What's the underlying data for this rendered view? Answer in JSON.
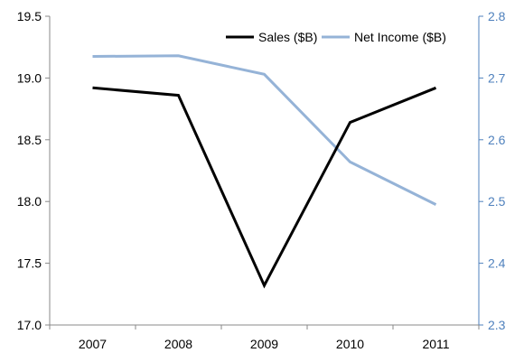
{
  "chart_data": {
    "type": "line",
    "categories": [
      "2007",
      "2008",
      "2009",
      "2010",
      "2011"
    ],
    "series": [
      {
        "name": "Sales ($B)",
        "axis": "left",
        "color": "#000000",
        "values": [
          18.92,
          18.86,
          17.32,
          18.64,
          18.92
        ]
      },
      {
        "name": "Net Income ($B)",
        "axis": "right",
        "color": "#95B3D7",
        "values": [
          2.735,
          2.736,
          2.706,
          2.564,
          2.495
        ]
      }
    ],
    "y_left": {
      "range": [
        17.0,
        19.5
      ],
      "ticks": [
        "17.0",
        "17.5",
        "18.0",
        "18.5",
        "19.0",
        "19.5"
      ]
    },
    "y_right": {
      "range": [
        2.3,
        2.8
      ],
      "ticks": [
        "2.3",
        "2.4",
        "2.5",
        "2.6",
        "2.7",
        "2.8"
      ],
      "color": "#4F81BD"
    },
    "grid": false,
    "legend_position": "top-right"
  }
}
